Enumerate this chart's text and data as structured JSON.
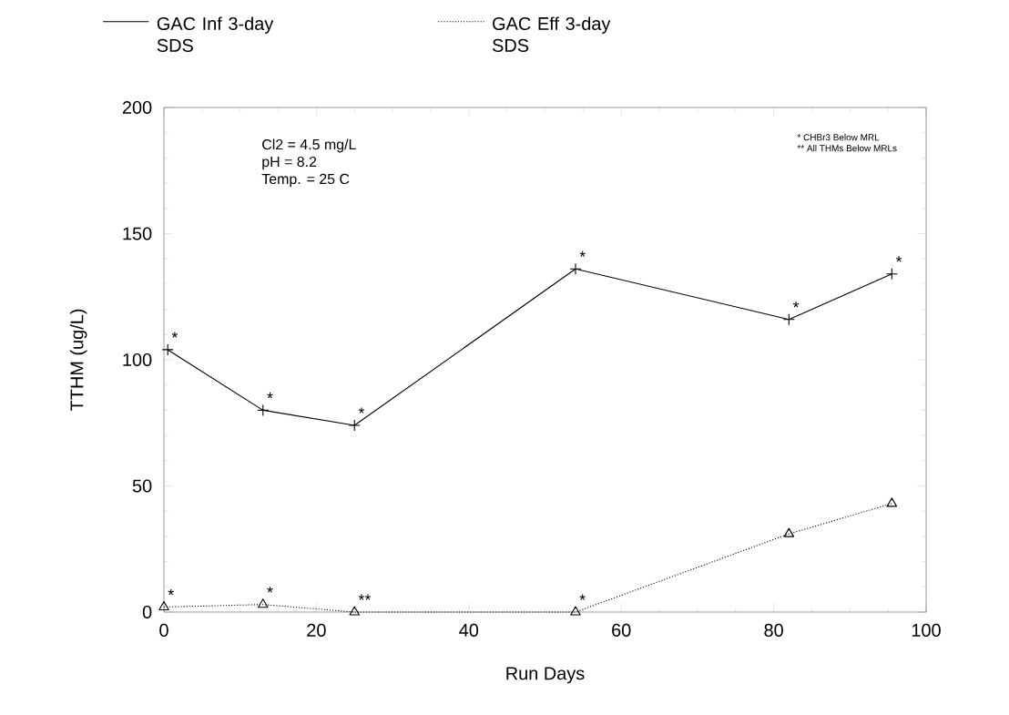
{
  "chart_data": {
    "type": "line",
    "xlabel": "Run Days",
    "ylabel": "TTHM (ug/L)",
    "xlim": [
      0,
      100
    ],
    "xticks": [
      0,
      20,
      40,
      60,
      80,
      100
    ],
    "ylim": [
      0,
      200
    ],
    "yticks": [
      0,
      50,
      100,
      150,
      200
    ],
    "legend": "top",
    "grid": false,
    "series": [
      {
        "name": "GAC Inf 3-day SDS",
        "color": "#000000",
        "marker": "cross",
        "line_style": "solid",
        "x": [
          0.5,
          13,
          25,
          54,
          82,
          95.5
        ],
        "values": [
          104,
          80,
          74,
          136,
          116,
          134
        ]
      },
      {
        "name": "GAC Eff 3-day SDS",
        "color": "#000000",
        "marker": "triangle",
        "line_style": "dotted",
        "x": [
          0,
          13,
          25,
          54,
          82,
          95.5
        ],
        "values": [
          2,
          3,
          0,
          0,
          31,
          43
        ]
      }
    ],
    "annotations": [
      "Cl2 = 4.5 mg/L",
      "pH = 8.2",
      "Temp. = 25 C",
      "* CHBr3 Below MRL",
      "** All THMs Below MRLs",
      {
        "text": "*",
        "x": 0.5,
        "y": 104
      },
      {
        "text": "*",
        "x": 13,
        "y": 80
      },
      {
        "text": "*",
        "x": 25,
        "y": 74
      },
      {
        "text": "*",
        "x": 54,
        "y": 136
      },
      {
        "text": "*",
        "x": 82,
        "y": 116
      },
      {
        "text": "*",
        "x": 95.5,
        "y": 134
      },
      {
        "text": "*",
        "x": 0,
        "y": 2
      },
      {
        "text": "*",
        "x": 13,
        "y": 3
      },
      {
        "text": "**",
        "x": 25,
        "y": 0
      },
      {
        "text": "*",
        "x": 54,
        "y": 0
      }
    ]
  }
}
